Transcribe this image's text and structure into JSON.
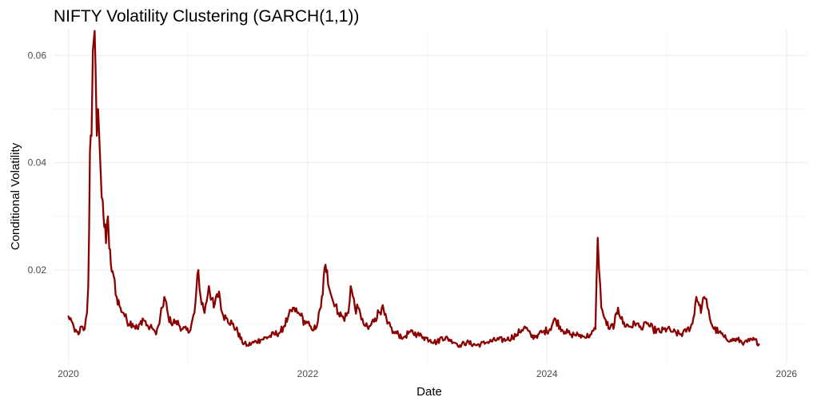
{
  "chart_data": {
    "type": "line",
    "title": "NIFTY Volatility Clustering (GARCH(1,1))",
    "xlabel": "Date",
    "ylabel": "Conditional Volatility",
    "xlim": [
      "2019-11-17",
      "2026-03-06"
    ],
    "ylim": [
      0.0026,
      0.0648
    ],
    "x_ticks": [
      "2020",
      "2022",
      "2024",
      "2026"
    ],
    "x_tick_values": [
      "2020-01-01",
      "2022-01-01",
      "2024-01-01",
      "2026-01-01"
    ],
    "y_ticks": [
      "0.02",
      "0.04",
      "0.06"
    ],
    "y_tick_values": [
      0.02,
      0.04,
      0.06
    ],
    "grid": true,
    "legend": "none",
    "line_color": "#8b0000",
    "background": "#ffffff",
    "series": [
      {
        "x": [
          "2020-01-01",
          "2020-01-11",
          "2020-01-21",
          "2020-02-01",
          "2020-02-10",
          "2020-02-20",
          "2020-02-27",
          "2020-03-02",
          "2020-03-07",
          "2020-03-12",
          "2020-03-16",
          "2020-03-19",
          "2020-03-24",
          "2020-03-28",
          "2020-04-01",
          "2020-04-05",
          "2020-04-09",
          "2020-04-15",
          "2020-04-20",
          "2020-04-25",
          "2020-05-01",
          "2020-05-05",
          "2020-05-10",
          "2020-05-18",
          "2020-05-28",
          "2020-06-08",
          "2020-06-18",
          "2020-06-28",
          "2020-07-15",
          "2020-08-01",
          "2020-08-15",
          "2020-09-01",
          "2020-09-15",
          "2020-09-25",
          "2020-10-05",
          "2020-10-20",
          "2020-11-01",
          "2020-11-10",
          "2020-11-25",
          "2020-12-15",
          "2021-01-05",
          "2021-01-20",
          "2021-02-01",
          "2021-02-08",
          "2021-02-20",
          "2021-03-05",
          "2021-03-20",
          "2021-04-05",
          "2021-04-15",
          "2021-04-30",
          "2021-05-15",
          "2021-06-01",
          "2021-06-15",
          "2021-07-01",
          "2021-07-20",
          "2021-08-10",
          "2021-09-01",
          "2021-09-20",
          "2021-10-10",
          "2021-11-01",
          "2021-11-20",
          "2021-11-30",
          "2021-12-10",
          "2021-12-25",
          "2022-01-10",
          "2022-01-25",
          "2022-02-10",
          "2022-02-24",
          "2022-03-01",
          "2022-03-10",
          "2022-03-20",
          "2022-04-05",
          "2022-04-20",
          "2022-05-05",
          "2022-05-12",
          "2022-05-25",
          "2022-06-10",
          "2022-06-20",
          "2022-07-05",
          "2022-07-25",
          "2022-08-15",
          "2022-09-01",
          "2022-09-20",
          "2022-10-05",
          "2022-10-20",
          "2022-11-10",
          "2022-12-01",
          "2022-12-20",
          "2023-01-10",
          "2023-01-30",
          "2023-02-15",
          "2023-03-15",
          "2023-04-10",
          "2023-05-01",
          "2023-06-01",
          "2023-07-01",
          "2023-08-01",
          "2023-09-01",
          "2023-10-01",
          "2023-10-25",
          "2023-11-15",
          "2023-12-05",
          "2023-12-20",
          "2024-01-10",
          "2024-01-25",
          "2024-02-10",
          "2024-02-25",
          "2024-03-15",
          "2024-04-05",
          "2024-04-25",
          "2024-05-15",
          "2024-05-28",
          "2024-06-04",
          "2024-06-08",
          "2024-06-15",
          "2024-06-25",
          "2024-07-10",
          "2024-07-25",
          "2024-08-05",
          "2024-08-20",
          "2024-09-10",
          "2024-09-30",
          "2024-10-15",
          "2024-11-01",
          "2024-11-20",
          "2024-12-10",
          "2025-01-01",
          "2025-01-20",
          "2025-02-10",
          "2025-03-01",
          "2025-03-20",
          "2025-04-01",
          "2025-04-07",
          "2025-04-15",
          "2025-04-25",
          "2025-05-05",
          "2025-05-12",
          "2025-05-25",
          "2025-06-10",
          "2025-06-25",
          "2025-07-15",
          "2025-08-05",
          "2025-08-25",
          "2025-09-10",
          "2025-09-25",
          "2025-10-10"
        ],
        "y": [
          0.0115,
          0.0105,
          0.0085,
          0.008,
          0.0095,
          0.009,
          0.012,
          0.017,
          0.042,
          0.045,
          0.061,
          0.063,
          0.058,
          0.045,
          0.05,
          0.044,
          0.038,
          0.033,
          0.028,
          0.025,
          0.03,
          0.024,
          0.021,
          0.019,
          0.015,
          0.013,
          0.012,
          0.0105,
          0.01,
          0.009,
          0.011,
          0.0095,
          0.009,
          0.008,
          0.01,
          0.015,
          0.0115,
          0.01,
          0.0105,
          0.009,
          0.0085,
          0.012,
          0.02,
          0.015,
          0.012,
          0.017,
          0.013,
          0.016,
          0.012,
          0.011,
          0.01,
          0.0085,
          0.0065,
          0.006,
          0.0065,
          0.007,
          0.0075,
          0.008,
          0.0085,
          0.011,
          0.013,
          0.012,
          0.0115,
          0.01,
          0.0095,
          0.009,
          0.013,
          0.021,
          0.02,
          0.016,
          0.014,
          0.012,
          0.011,
          0.012,
          0.017,
          0.013,
          0.012,
          0.01,
          0.009,
          0.011,
          0.013,
          0.01,
          0.0085,
          0.008,
          0.0075,
          0.0085,
          0.008,
          0.0075,
          0.007,
          0.0065,
          0.0075,
          0.007,
          0.006,
          0.0065,
          0.006,
          0.0065,
          0.007,
          0.007,
          0.008,
          0.0095,
          0.0075,
          0.008,
          0.0085,
          0.009,
          0.011,
          0.0095,
          0.0085,
          0.008,
          0.008,
          0.0075,
          0.008,
          0.009,
          0.026,
          0.02,
          0.013,
          0.011,
          0.009,
          0.01,
          0.013,
          0.01,
          0.0095,
          0.01,
          0.009,
          0.01,
          0.009,
          0.0085,
          0.009,
          0.0085,
          0.008,
          0.0085,
          0.01,
          0.015,
          0.014,
          0.012,
          0.015,
          0.013,
          0.011,
          0.009,
          0.0085,
          0.0075,
          0.007,
          0.007,
          0.0065,
          0.0068,
          0.007,
          0.0063
        ]
      }
    ]
  }
}
